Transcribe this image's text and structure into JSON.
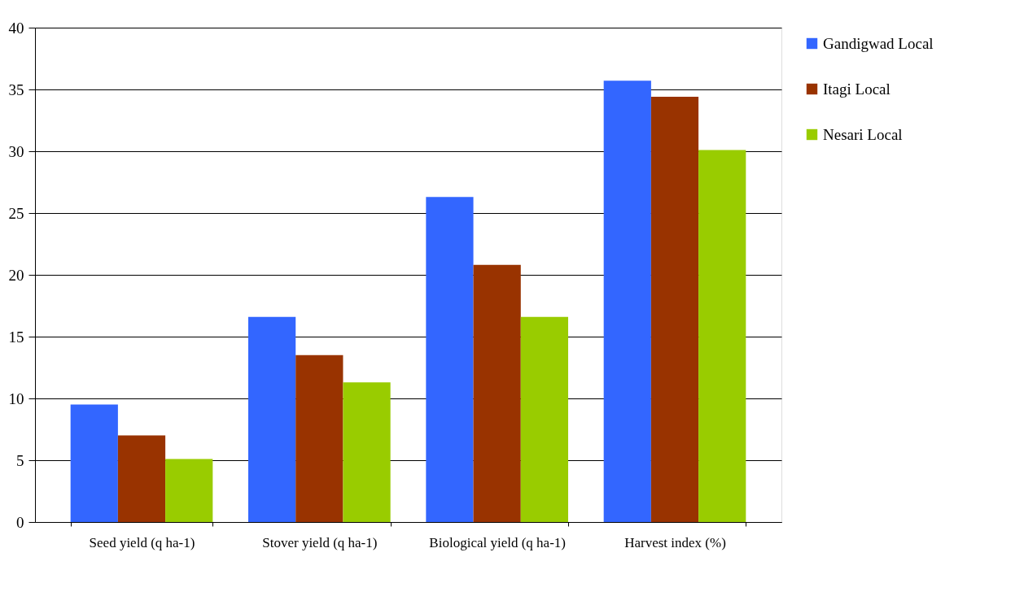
{
  "chart_data": {
    "type": "bar",
    "categories": [
      "Seed yield (q ha-1)",
      "Stover yield (q ha-1)",
      "Biological yield (q ha-1)",
      "Harvest index (%)"
    ],
    "series": [
      {
        "name": "Gandigwad Local",
        "color": "#3366ff",
        "values": [
          9.5,
          16.6,
          26.3,
          35.7
        ]
      },
      {
        "name": "Itagi Local",
        "color": "#993300",
        "values": [
          7.0,
          13.5,
          20.8,
          34.4
        ]
      },
      {
        "name": "Nesari Local",
        "color": "#99cc00",
        "values": [
          5.1,
          11.3,
          16.6,
          30.1
        ]
      }
    ],
    "ylim": [
      0,
      40
    ],
    "yticks": [
      0,
      5,
      10,
      15,
      20,
      25,
      30,
      35,
      40
    ],
    "grid": "y",
    "legend": "right"
  }
}
